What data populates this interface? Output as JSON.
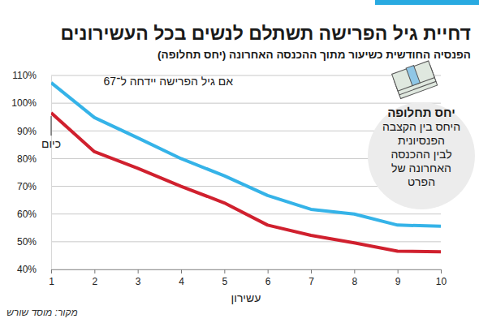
{
  "chart_data": {
    "type": "line",
    "title": "דחיית גיל הפרישה תשתלם לנשים בכל העשירונים",
    "subtitle": "הפנסיה החודשית כשיעור מתוך ההכנסה האחרונה (יחס תחלופה)",
    "x_label": "עשירון",
    "source": "מקור: מוסד שורש",
    "callout": {
      "title": "יחס תחלופה",
      "text": [
        "היחס בין הקצבה",
        "הפנסיונית",
        "לבין ההכנסה",
        "האחרונה של",
        "הפרט"
      ]
    },
    "x": [
      1,
      2,
      3,
      4,
      5,
      6,
      7,
      8,
      9,
      10
    ],
    "series": [
      {
        "name": "אם גיל הפרישה יידחה ל־67",
        "color": "#35b3e8",
        "values": [
          107.4,
          94.8,
          87.5,
          80,
          73.8,
          66.7,
          61.7,
          60,
          56,
          55.6
        ]
      },
      {
        "name": "כיום",
        "color": "#d0202e",
        "values": [
          96.5,
          82.5,
          76.5,
          70,
          64,
          56,
          52.3,
          49.6,
          46.6,
          46.4
        ]
      }
    ],
    "xlim": [
      1,
      10
    ],
    "xticks": [
      1,
      2,
      3,
      4,
      5,
      6,
      7,
      8,
      9,
      10
    ],
    "ylim": [
      40,
      110
    ],
    "yticks": [
      {
        "value": 40,
        "label": "40%"
      },
      {
        "value": 50,
        "label": "50%"
      },
      {
        "value": 60,
        "label": "60%"
      },
      {
        "value": 70,
        "label": "70%"
      },
      {
        "value": 80,
        "label": "80%"
      },
      {
        "value": 90,
        "label": "90%"
      },
      {
        "value": 100,
        "label": "100%"
      },
      {
        "value": 110,
        "label": "110%"
      }
    ],
    "grid": true
  }
}
